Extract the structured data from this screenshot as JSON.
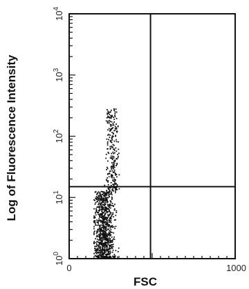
{
  "chart_data": {
    "type": "scatter",
    "title": "",
    "xlabel": "FSC",
    "ylabel": "Log of Fluorescence Intensity",
    "xlim": [
      0,
      1000
    ],
    "ylim": [
      1,
      10000
    ],
    "yscale": "log",
    "x_ticks": [
      {
        "value": 0,
        "label": "0"
      },
      {
        "value": 1000,
        "label": "1000"
      }
    ],
    "y_ticks": [
      {
        "value": 1,
        "base": "10",
        "exp": "0"
      },
      {
        "value": 10,
        "base": "10",
        "exp": "1"
      },
      {
        "value": 100,
        "base": "10",
        "exp": "2"
      },
      {
        "value": 1000,
        "base": "10",
        "exp": "3"
      },
      {
        "value": 10000,
        "base": "10",
        "exp": "4"
      }
    ],
    "quadrant_gates": {
      "x": 490,
      "y": 15
    },
    "series": [
      {
        "color": "#111111",
        "clusters": [
          {
            "x_center": 210,
            "x_spread": 55,
            "y_log_min": 0.0,
            "y_log_max": 1.1,
            "count": 900
          },
          {
            "x_center": 260,
            "x_spread": 35,
            "y_log_min": 1.1,
            "y_log_max": 2.45,
            "count": 260
          }
        ]
      }
    ],
    "grid": false,
    "legend": "none"
  }
}
